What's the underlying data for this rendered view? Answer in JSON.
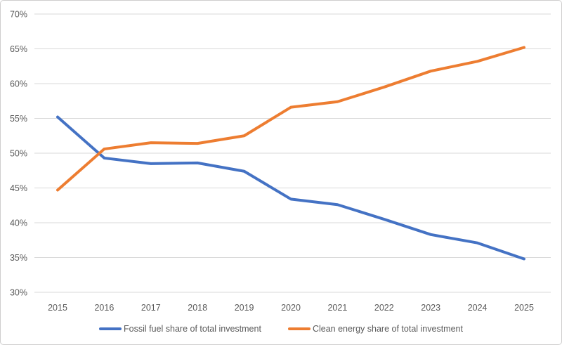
{
  "chart_data": {
    "type": "line",
    "title": "",
    "x_labels": [
      "2015",
      "2016",
      "2017",
      "2018",
      "2019",
      "2020",
      "2021",
      "2022",
      "2023",
      "2024",
      "2025"
    ],
    "y_axis": {
      "min": 30,
      "max": 70,
      "step": 5,
      "tick_labels": [
        "30%",
        "35%",
        "40%",
        "45%",
        "50%",
        "55%",
        "60%",
        "65%",
        "70%"
      ]
    },
    "grid": true,
    "legend_position": "bottom",
    "series": [
      {
        "name": "Fossil fuel share of total investment",
        "color": "#4472C4",
        "values": [
          55.2,
          49.3,
          48.5,
          48.6,
          47.4,
          43.4,
          42.6,
          40.5,
          38.3,
          37.1,
          34.8
        ]
      },
      {
        "name": "Clean energy share of total investment",
        "color": "#ED7D31",
        "values": [
          44.7,
          50.6,
          51.5,
          51.4,
          52.5,
          56.6,
          57.4,
          59.5,
          61.8,
          63.2,
          65.2
        ]
      }
    ]
  },
  "colors": {
    "background": "#FFFFFF",
    "border": "#CFCECE",
    "gridline": "#D9D9D9",
    "axis_text": "#595959"
  }
}
